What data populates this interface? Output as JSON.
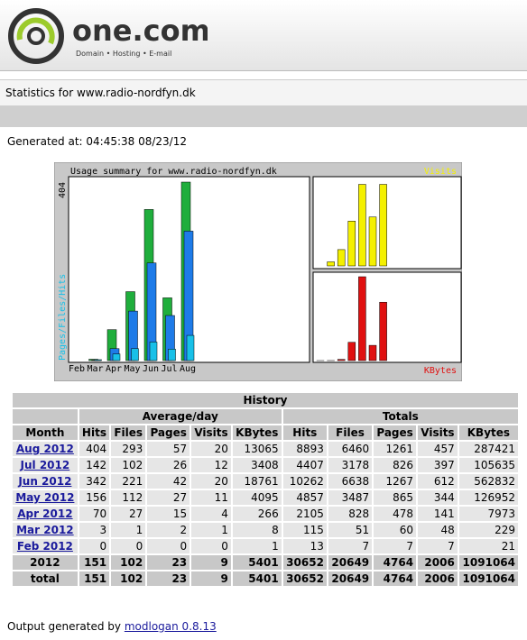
{
  "header": {
    "logo": "one.com",
    "tagline": "Domain • Hosting • E-mail",
    "site_title": "Statistics for www.radio-nordfyn.dk"
  },
  "generated": "Generated at: 04:45:38 08/23/12",
  "chart": {
    "title": "Usage summary for www.radio-nordfyn.dk",
    "left_max": 404,
    "left_label": "Pages/Files/Hits",
    "visits_label": "Visits",
    "visits_max": 21,
    "kbytes_label": "KBytes",
    "kbytes_max": 18761,
    "months": [
      "Feb",
      "Mar",
      "Apr",
      "May",
      "Jun",
      "Jul",
      "Aug"
    ],
    "colors": {
      "hits": "#1fae3c",
      "files": "#1e7be8",
      "pages": "#18c0e8",
      "visits": "#f4f000",
      "kbytes": "#e01010"
    }
  },
  "table": {
    "title": "History",
    "groups": [
      "Average/day",
      "Totals"
    ],
    "columns": [
      "Month",
      "Hits",
      "Files",
      "Pages",
      "Visits",
      "KBytes",
      "Hits",
      "Files",
      "Pages",
      "Visits",
      "KBytes"
    ],
    "rows": [
      [
        "Aug 2012",
        404,
        293,
        57,
        20,
        13065,
        8893,
        6460,
        1261,
        457,
        287421
      ],
      [
        "Jul 2012",
        142,
        102,
        26,
        12,
        3408,
        4407,
        3178,
        826,
        397,
        105635
      ],
      [
        "Jun 2012",
        342,
        221,
        42,
        20,
        18761,
        10262,
        6638,
        1267,
        612,
        562832
      ],
      [
        "May 2012",
        156,
        112,
        27,
        11,
        4095,
        4857,
        3487,
        865,
        344,
        126952
      ],
      [
        "Apr 2012",
        70,
        27,
        15,
        4,
        266,
        2105,
        828,
        478,
        141,
        7973
      ],
      [
        "Mar 2012",
        3,
        1,
        2,
        1,
        8,
        115,
        51,
        60,
        48,
        229
      ],
      [
        "Feb 2012",
        0,
        0,
        0,
        0,
        1,
        13,
        7,
        7,
        7,
        21
      ]
    ],
    "summary": [
      [
        "2012",
        151,
        102,
        23,
        9,
        5401,
        30652,
        20649,
        4764,
        2006,
        1091064
      ],
      [
        "total",
        151,
        102,
        23,
        9,
        5401,
        30652,
        20649,
        4764,
        2006,
        1091064
      ]
    ]
  },
  "footer": {
    "text": "Output generated by",
    "link": "modlogan 0.8.13"
  }
}
